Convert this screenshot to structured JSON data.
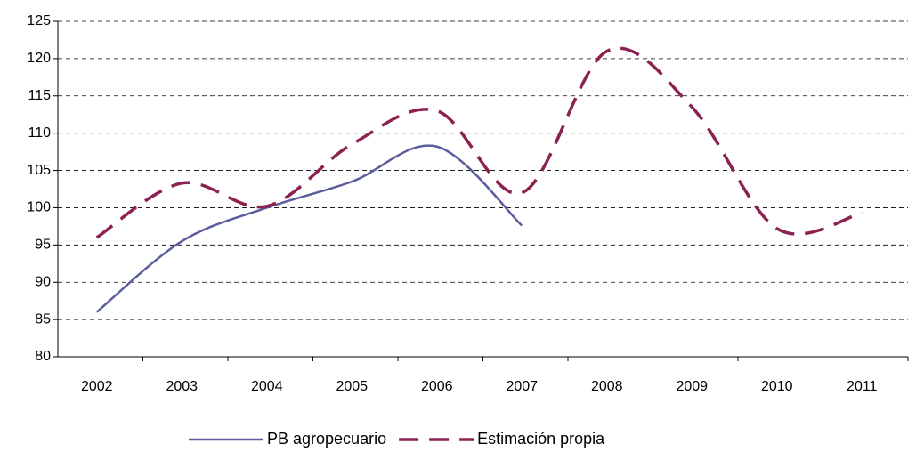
{
  "chart_data": {
    "type": "line",
    "categories": [
      "2002",
      "2003",
      "2004",
      "2005",
      "2006",
      "2007",
      "2008",
      "2009",
      "2010",
      "2011"
    ],
    "series": [
      {
        "name": "PB agropecuario",
        "color": "#5b5e9c",
        "dash": false,
        "values": [
          86,
          95.5,
          100,
          103.5,
          108.2,
          97.6,
          null,
          null,
          null,
          null
        ]
      },
      {
        "name": "Estimación propia",
        "color": "#8b2252",
        "dash": true,
        "values": [
          96,
          103.3,
          100.2,
          108.5,
          113,
          102,
          121,
          113.5,
          97.2,
          99.3
        ]
      }
    ],
    "ylim": [
      80,
      125
    ],
    "yticks": [
      80,
      85,
      90,
      95,
      100,
      105,
      110,
      115,
      120,
      125
    ],
    "grid": true,
    "legend": "bottom"
  }
}
